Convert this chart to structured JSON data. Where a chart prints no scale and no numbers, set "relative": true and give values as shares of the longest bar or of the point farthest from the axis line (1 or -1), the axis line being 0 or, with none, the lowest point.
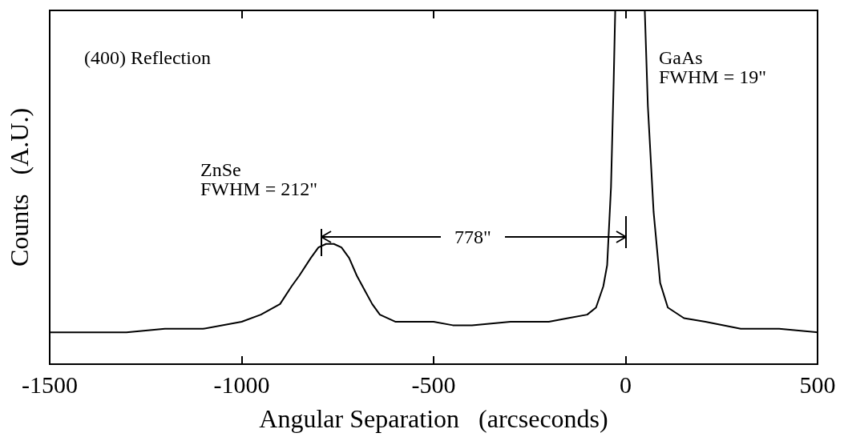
{
  "chart_data": {
    "type": "line",
    "relative": true,
    "xlabel": "Angular Separation   (arcseconds)",
    "ylabel": "Counts   (A.U.)",
    "xlim": [
      -1500,
      500
    ],
    "xticks": [
      -1500,
      -1000,
      -500,
      0,
      500
    ],
    "marker": "none",
    "line_style": "solid",
    "annotations": [
      "(400) Reflection",
      "ZnSe\nFWHM = 212\"",
      "GaAs\nFWHM = 19\"",
      "778\""
    ],
    "series": [
      {
        "color": "#000000",
        "x": [
          -1500,
          -1400,
          -1300,
          -1200,
          -1100,
          -1000,
          -950,
          -900,
          -870,
          -850,
          -820,
          -800,
          -780,
          -760,
          -740,
          -720,
          -700,
          -680,
          -660,
          -640,
          -600,
          -550,
          -500,
          -450,
          -400,
          -300,
          -200,
          -150,
          -100,
          -77,
          -58,
          -48,
          -38,
          -31,
          -27,
          50,
          58,
          73,
          90,
          110,
          152,
          208,
          300,
          400,
          500
        ],
        "values": [
          0.09,
          0.09,
          0.09,
          0.1,
          0.1,
          0.12,
          0.14,
          0.17,
          0.22,
          0.25,
          0.3,
          0.33,
          0.34,
          0.34,
          0.33,
          0.3,
          0.25,
          0.21,
          0.17,
          0.14,
          0.12,
          0.12,
          0.12,
          0.11,
          0.11,
          0.12,
          0.12,
          0.13,
          0.14,
          0.16,
          0.22,
          0.28,
          0.5,
          0.8,
          1,
          1,
          0.73,
          0.43,
          0.23,
          0.16,
          0.13,
          0.12,
          0.1,
          0.1,
          0.09
        ]
      }
    ]
  }
}
